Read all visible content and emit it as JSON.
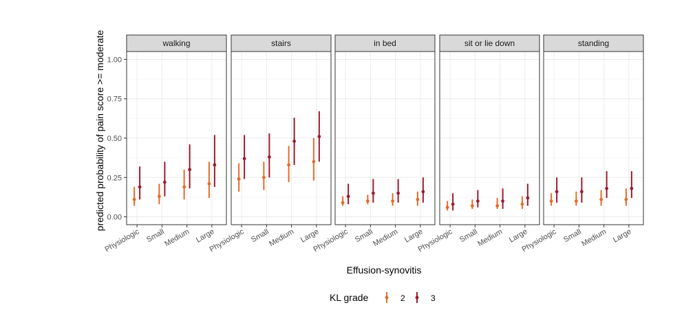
{
  "chart_data": {
    "type": "scatter",
    "subtype": "pointrange-faceted",
    "title": "",
    "xlabel": "Effusion-synovitis",
    "ylabel": "predicted probability of pain score >= moderate",
    "ylim": [
      -0.05,
      1.05
    ],
    "yticks": [
      0.0,
      0.25,
      0.5,
      0.75,
      1.0
    ],
    "ytick_labels": [
      "0.00",
      "0.25",
      "0.50",
      "0.75",
      "1.00"
    ],
    "categories": [
      "Physiologic",
      "Small",
      "Medium",
      "Large"
    ],
    "grid": true,
    "legend": {
      "title": "KL grade",
      "position": "bottom",
      "entries": [
        {
          "label": "2",
          "color": "#e36b2a"
        },
        {
          "label": "3",
          "color": "#9b1b30"
        }
      ]
    },
    "facets": [
      {
        "label": "walking",
        "series": [
          {
            "name": "2",
            "values": [
              0.11,
              0.13,
              0.19,
              0.21
            ],
            "lower": [
              0.07,
              0.08,
              0.11,
              0.12
            ],
            "upper": [
              0.19,
              0.21,
              0.3,
              0.35
            ]
          },
          {
            "name": "3",
            "values": [
              0.19,
              0.22,
              0.3,
              0.33
            ],
            "lower": [
              0.11,
              0.13,
              0.18,
              0.19
            ],
            "upper": [
              0.32,
              0.35,
              0.46,
              0.52
            ]
          }
        ]
      },
      {
        "label": "stairs",
        "series": [
          {
            "name": "2",
            "values": [
              0.24,
              0.25,
              0.33,
              0.35
            ],
            "lower": [
              0.16,
              0.17,
              0.22,
              0.23
            ],
            "upper": [
              0.34,
              0.35,
              0.45,
              0.5
            ]
          },
          {
            "name": "3",
            "values": [
              0.37,
              0.38,
              0.48,
              0.51
            ],
            "lower": [
              0.24,
              0.25,
              0.33,
              0.35
            ],
            "upper": [
              0.52,
              0.53,
              0.63,
              0.67
            ]
          }
        ]
      },
      {
        "label": "in bed",
        "series": [
          {
            "name": "2",
            "values": [
              0.09,
              0.1,
              0.1,
              0.11
            ],
            "lower": [
              0.07,
              0.08,
              0.07,
              0.07
            ],
            "upper": [
              0.13,
              0.14,
              0.15,
              0.16
            ]
          },
          {
            "name": "3",
            "values": [
              0.13,
              0.15,
              0.15,
              0.16
            ],
            "lower": [
              0.08,
              0.09,
              0.09,
              0.09
            ],
            "upper": [
              0.21,
              0.24,
              0.24,
              0.25
            ]
          }
        ]
      },
      {
        "label": "sit or lie down",
        "series": [
          {
            "name": "2",
            "values": [
              0.06,
              0.07,
              0.07,
              0.08
            ],
            "lower": [
              0.04,
              0.05,
              0.05,
              0.05
            ],
            "upper": [
              0.1,
              0.11,
              0.12,
              0.13
            ]
          },
          {
            "name": "3",
            "values": [
              0.08,
              0.1,
              0.1,
              0.12
            ],
            "lower": [
              0.04,
              0.06,
              0.05,
              0.07
            ],
            "upper": [
              0.15,
              0.17,
              0.18,
              0.21
            ]
          }
        ]
      },
      {
        "label": "standing",
        "series": [
          {
            "name": "2",
            "values": [
              0.1,
              0.1,
              0.11,
              0.11
            ],
            "lower": [
              0.07,
              0.07,
              0.07,
              0.07
            ],
            "upper": [
              0.15,
              0.16,
              0.17,
              0.18
            ]
          },
          {
            "name": "3",
            "values": [
              0.16,
              0.16,
              0.18,
              0.18
            ],
            "lower": [
              0.09,
              0.09,
              0.12,
              0.12
            ],
            "upper": [
              0.25,
              0.25,
              0.29,
              0.29
            ]
          }
        ]
      }
    ]
  }
}
